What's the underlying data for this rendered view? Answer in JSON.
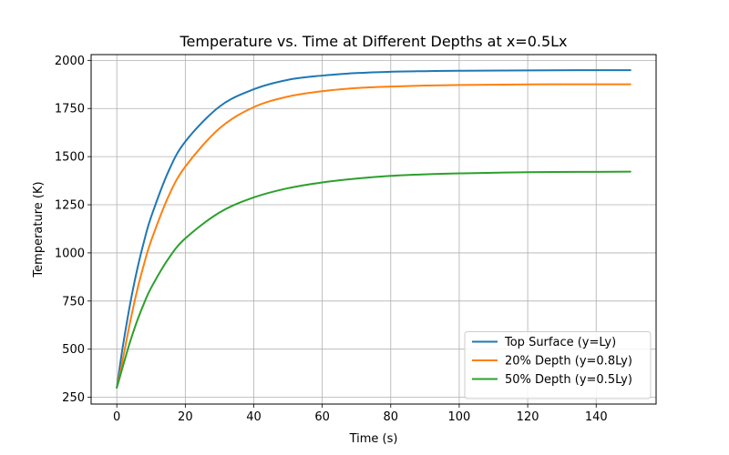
{
  "chart_data": {
    "type": "line",
    "title": "Temperature vs. Time at Different Depths at x=0.5Lx",
    "xlabel": "Time (s)",
    "ylabel": "Temperature (K)",
    "xlim": [
      -7.5,
      157.5
    ],
    "ylim": [
      215,
      2030
    ],
    "grid": true,
    "legend_position": "lower right",
    "x_ticks": [
      0,
      20,
      40,
      60,
      80,
      100,
      120,
      140
    ],
    "y_ticks": [
      250,
      500,
      750,
      1000,
      1250,
      1500,
      1750,
      2000
    ],
    "series": [
      {
        "name": "Top Surface (y=Ly)",
        "color": "#1f77b4",
        "x": [
          0,
          1,
          2,
          4,
          6,
          8,
          10,
          15,
          20,
          30,
          40,
          50,
          60,
          70,
          80,
          90,
          100,
          120,
          140,
          150
        ],
        "y": [
          300,
          425,
          541,
          745,
          918,
          1063,
          1186,
          1420,
          1578,
          1760,
          1850,
          1899,
          1921,
          1934,
          1941,
          1944,
          1946,
          1948,
          1949,
          1949
        ]
      },
      {
        "name": "20% Depth (y=0.8Ly)",
        "color": "#ff7f0e",
        "x": [
          0,
          1,
          2,
          4,
          6,
          8,
          10,
          15,
          20,
          30,
          40,
          50,
          60,
          70,
          80,
          90,
          100,
          120,
          140,
          150
        ],
        "y": [
          300,
          380,
          470,
          650,
          810,
          945,
          1062,
          1290,
          1448,
          1647,
          1757,
          1812,
          1840,
          1856,
          1864,
          1869,
          1872,
          1875,
          1876,
          1876
        ]
      },
      {
        "name": "50% Depth (y=0.5Ly)",
        "color": "#2ca02c",
        "x": [
          0,
          1,
          2,
          4,
          6,
          8,
          10,
          15,
          20,
          30,
          40,
          50,
          60,
          70,
          80,
          90,
          100,
          120,
          140,
          150
        ],
        "y": [
          300,
          362,
          425,
          545,
          650,
          740,
          818,
          968,
          1075,
          1210,
          1288,
          1336,
          1366,
          1386,
          1400,
          1408,
          1413,
          1419,
          1421,
          1422
        ]
      }
    ]
  }
}
